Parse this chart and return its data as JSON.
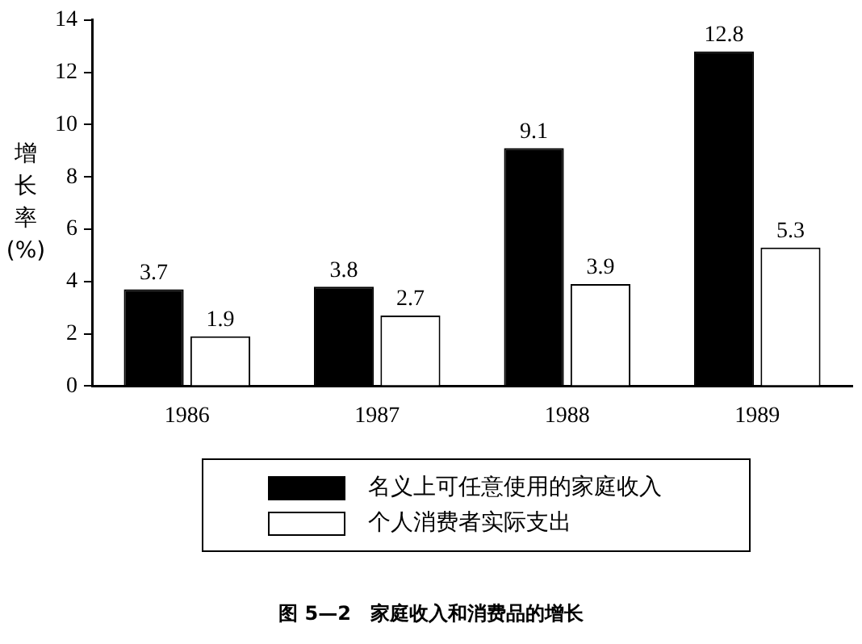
{
  "chart_data": {
    "type": "bar",
    "title": "图 5—2　家庭收入和消费品的增长",
    "ylabel": "增长率(%)",
    "categories": [
      "1986",
      "1987",
      "1988",
      "1989"
    ],
    "series": [
      {
        "name": "名义上可任意使用的家庭收入",
        "color": "#000000",
        "values": [
          3.7,
          3.8,
          9.1,
          12.8
        ]
      },
      {
        "name": "个人消费者实际支出",
        "color": "#ffffff",
        "values": [
          1.9,
          2.7,
          3.9,
          5.3
        ]
      }
    ],
    "ylim": [
      0,
      14
    ],
    "yticks": [
      0,
      2,
      4,
      6,
      8,
      10,
      12,
      14
    ],
    "grid": false,
    "legend": "bottom",
    "data_labels": true
  }
}
